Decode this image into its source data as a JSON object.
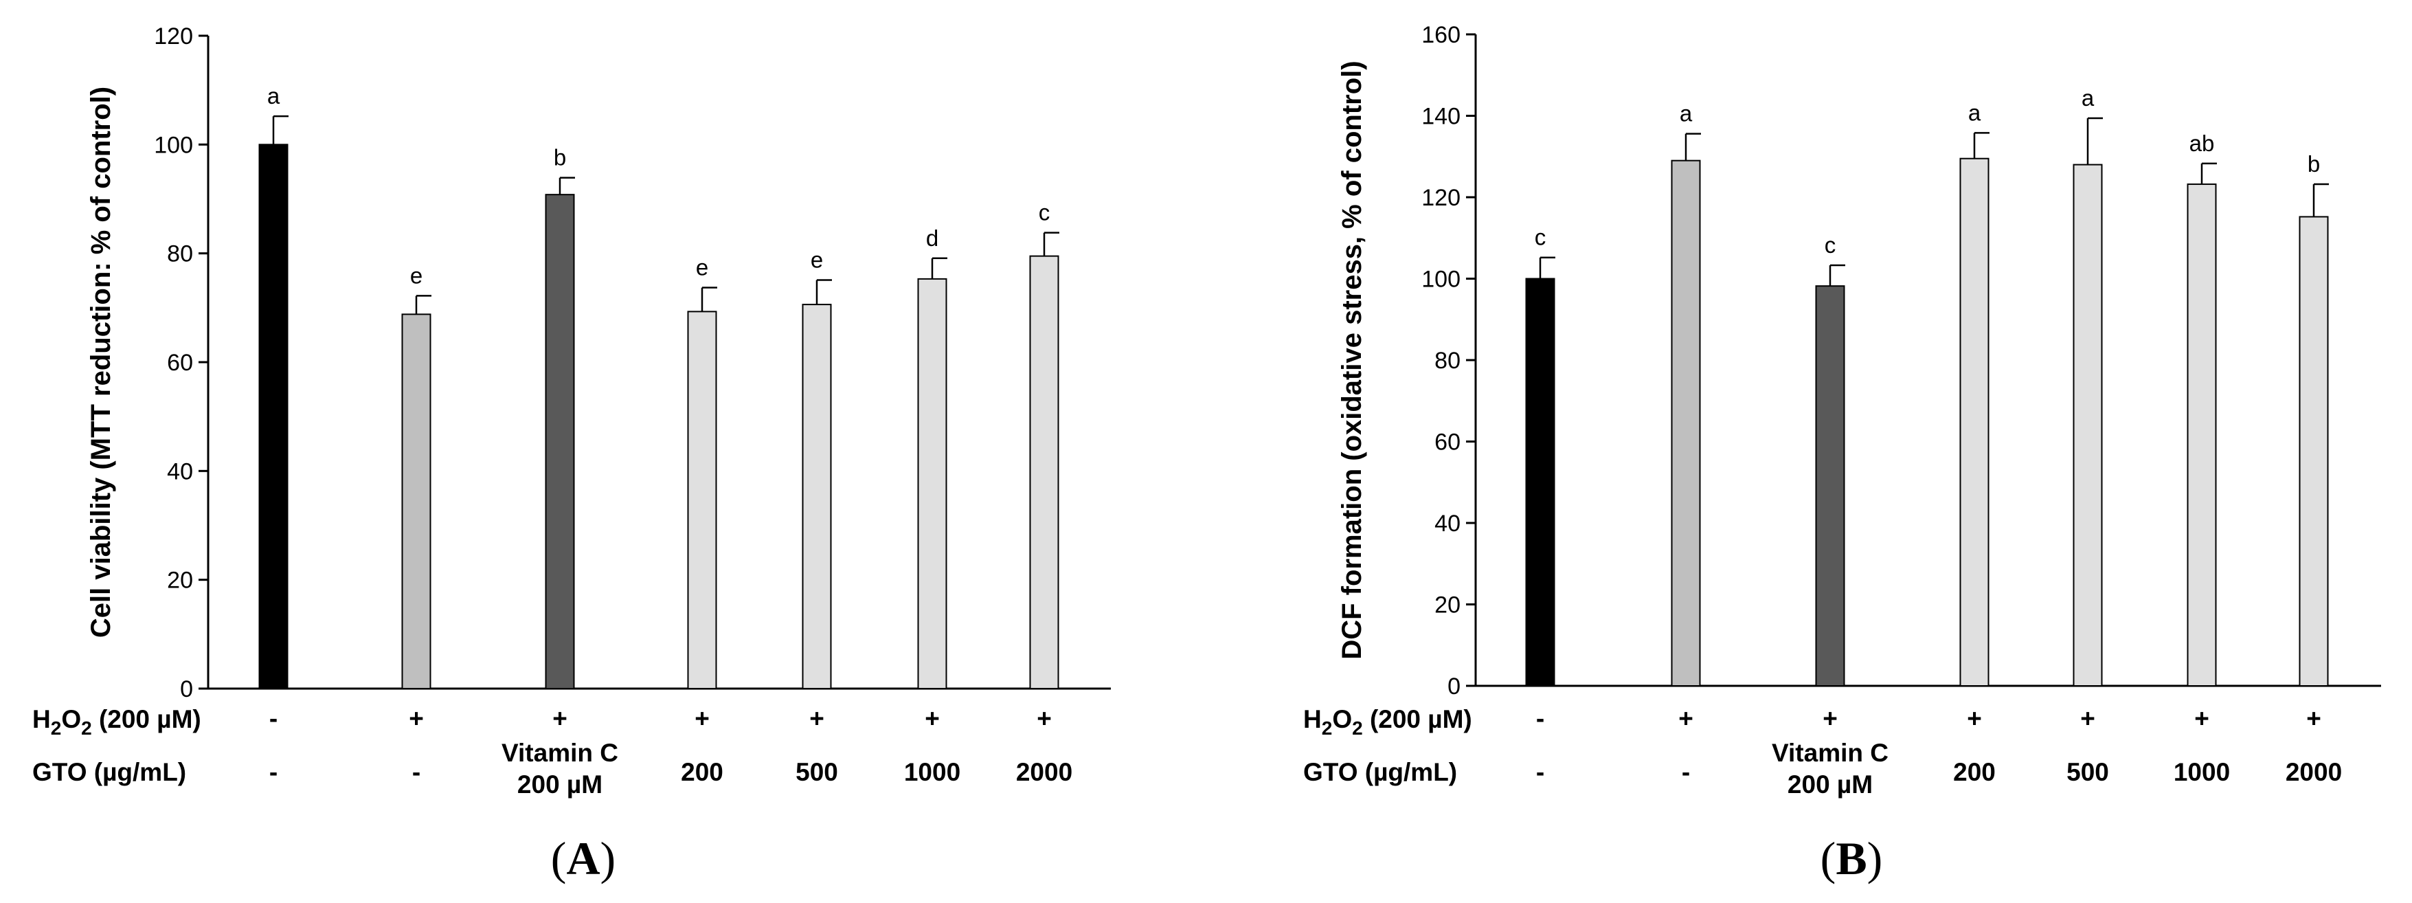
{
  "chart_data": [
    {
      "panel": "A",
      "type": "bar",
      "ylabel": "Cell viability (MTT reduction: % of control)",
      "ylim": [
        0,
        120
      ],
      "yticks": [
        0,
        20,
        40,
        60,
        80,
        100,
        120
      ],
      "values": [
        100,
        68.8,
        90.8,
        69.3,
        70.6,
        75.3,
        79.5
      ],
      "errors": [
        5.2,
        3.4,
        3.1,
        4.4,
        4.5,
        3.8,
        4.3
      ],
      "letters": [
        "a",
        "e",
        "b",
        "e",
        "e",
        "d",
        "c"
      ],
      "colors": [
        "#000000",
        "#bfbfbf",
        "#595959",
        "#e0e0e0",
        "#e0e0e0",
        "#e0e0e0",
        "#e0e0e0"
      ],
      "h2o2_row": [
        "-",
        "+",
        "+",
        "+",
        "+",
        "+",
        "+"
      ],
      "gto_row": [
        "-",
        "-",
        "Vitamin C\n200 µM",
        "200",
        "500",
        "1000",
        "2000"
      ]
    },
    {
      "panel": "B",
      "type": "bar",
      "ylabel": "DCF formation (oxidative stress, % of control)",
      "ylim": [
        0,
        160
      ],
      "yticks": [
        0,
        20,
        40,
        60,
        80,
        100,
        120,
        140,
        160
      ],
      "values": [
        100,
        129,
        98.2,
        129.5,
        128,
        123.2,
        115.2
      ],
      "errors": [
        5.2,
        6.6,
        5.1,
        6.3,
        11.4,
        5.1,
        8
      ],
      "letters": [
        "c",
        "a",
        "c",
        "a",
        "a",
        "ab",
        "b"
      ],
      "colors": [
        "#000000",
        "#bfbfbf",
        "#595959",
        "#e0e0e0",
        "#e0e0e0",
        "#e0e0e0",
        "#e0e0e0"
      ],
      "h2o2_row": [
        "-",
        "+",
        "+",
        "+",
        "+",
        "+",
        "+"
      ],
      "gto_row": [
        "-",
        "-",
        "Vitamin C\n200 µM",
        "200",
        "500",
        "1000",
        "2000"
      ]
    }
  ],
  "row_labels": {
    "h2o2_main": "H",
    "h2o2_sub": "2",
    "h2o2_main2": "O",
    "h2o2_sub2": "2",
    "h2o2_rest": " (200 µM)",
    "gto": "GTO (µg/mL)"
  },
  "panel_labels": [
    "A",
    "B"
  ]
}
